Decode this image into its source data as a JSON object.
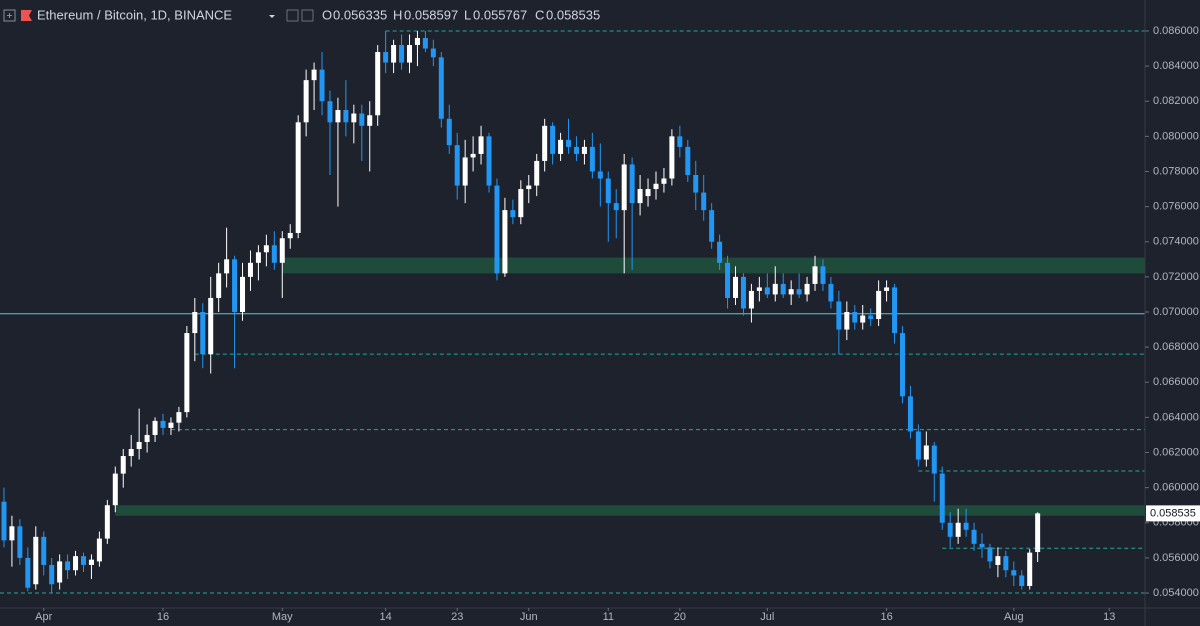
{
  "chart_data": {
    "type": "candlestick",
    "title": "Ethereum / Bitcoin, 1D, BINANCE",
    "ohlc_labels": [
      "O",
      "H",
      "L",
      "C"
    ],
    "up_color": "#ffffff",
    "down_color": "#2196f3",
    "open": [
      0.0592,
      0.057,
      0.0578,
      0.056,
      0.0545,
      0.0572,
      0.0556,
      0.0546,
      0.0558,
      0.0553,
      0.0561,
      0.0556,
      0.0558,
      0.0571,
      0.059,
      0.0608,
      0.0618,
      0.0622,
      0.0626,
      0.063,
      0.0638,
      0.0634,
      0.0637,
      0.0643,
      0.0688,
      0.07,
      0.0676,
      0.0708,
      0.0722,
      0.073,
      0.07,
      0.072,
      0.0728,
      0.0734,
      0.0738,
      0.0728,
      0.0742,
      0.0745,
      0.0808,
      0.0832,
      0.0838,
      0.082,
      0.0808,
      0.0815,
      0.0808,
      0.0813,
      0.0806,
      0.0812,
      0.0848,
      0.0842,
      0.0852,
      0.0842,
      0.0852,
      0.0856,
      0.085,
      0.0845,
      0.081,
      0.0795,
      0.0772,
      0.0788,
      0.079,
      0.08,
      0.0772,
      0.0722,
      0.0758,
      0.0754,
      0.077,
      0.0772,
      0.0786,
      0.0806,
      0.079,
      0.0798,
      0.0794,
      0.079,
      0.0794,
      0.078,
      0.0776,
      0.0762,
      0.0758,
      0.0784,
      0.0762,
      0.0766,
      0.077,
      0.0773,
      0.0776,
      0.08,
      0.0794,
      0.0778,
      0.0768,
      0.0758,
      0.074,
      0.0728,
      0.0708,
      0.072,
      0.0702,
      0.0712,
      0.0714,
      0.071,
      0.0716,
      0.071,
      0.0713,
      0.071,
      0.0716,
      0.0726,
      0.0716,
      0.0706,
      0.069,
      0.07,
      0.0694,
      0.0698,
      0.0696,
      0.0712,
      0.0714,
      0.0688,
      0.0652,
      0.0632,
      0.0616,
      0.0624,
      0.0608,
      0.058,
      0.0572,
      0.058,
      0.0576,
      0.0568,
      0.0566,
      0.0556,
      0.0561,
      0.0553,
      0.055,
      0.0544,
      0.056335
    ],
    "high": [
      0.06,
      0.0584,
      0.0582,
      0.0566,
      0.0578,
      0.0575,
      0.056,
      0.0562,
      0.0562,
      0.0564,
      0.0563,
      0.0562,
      0.0575,
      0.0593,
      0.0612,
      0.0622,
      0.063,
      0.0645,
      0.0636,
      0.064,
      0.0642,
      0.064,
      0.0646,
      0.0692,
      0.0708,
      0.0705,
      0.072,
      0.0728,
      0.0748,
      0.0732,
      0.0728,
      0.0735,
      0.0738,
      0.0744,
      0.0746,
      0.0746,
      0.075,
      0.0812,
      0.0838,
      0.0842,
      0.0848,
      0.0826,
      0.0822,
      0.0832,
      0.0818,
      0.0818,
      0.082,
      0.0852,
      0.086,
      0.0855,
      0.0858,
      0.0858,
      0.086,
      0.086,
      0.0855,
      0.0848,
      0.0818,
      0.0802,
      0.0798,
      0.08,
      0.0806,
      0.0802,
      0.0776,
      0.0765,
      0.0764,
      0.0775,
      0.0778,
      0.079,
      0.081,
      0.0808,
      0.0802,
      0.081,
      0.08,
      0.0798,
      0.0802,
      0.0796,
      0.078,
      0.077,
      0.079,
      0.0788,
      0.0778,
      0.0776,
      0.078,
      0.0782,
      0.0804,
      0.0806,
      0.0798,
      0.0786,
      0.0778,
      0.0762,
      0.0744,
      0.0732,
      0.0726,
      0.0722,
      0.0716,
      0.072,
      0.0722,
      0.0726,
      0.0722,
      0.0718,
      0.0722,
      0.072,
      0.0732,
      0.073,
      0.072,
      0.0712,
      0.0706,
      0.0704,
      0.0704,
      0.0702,
      0.0718,
      0.0718,
      0.0716,
      0.0692,
      0.0658,
      0.0636,
      0.0632,
      0.0626,
      0.0612,
      0.0586,
      0.0588,
      0.0588,
      0.058,
      0.0574,
      0.0568,
      0.0566,
      0.0564,
      0.0558,
      0.0553,
      0.0565,
      0.058597
    ],
    "low": [
      0.0566,
      0.0555,
      0.0556,
      0.0541,
      0.0542,
      0.055,
      0.054,
      0.0542,
      0.0548,
      0.055,
      0.0552,
      0.0548,
      0.0555,
      0.0568,
      0.0586,
      0.06,
      0.0612,
      0.0616,
      0.062,
      0.0626,
      0.063,
      0.063,
      0.0632,
      0.064,
      0.0672,
      0.0668,
      0.0665,
      0.07,
      0.0714,
      0.0668,
      0.0695,
      0.0712,
      0.0718,
      0.0726,
      0.0724,
      0.0708,
      0.0736,
      0.0742,
      0.08,
      0.0815,
      0.0812,
      0.0778,
      0.076,
      0.08,
      0.0796,
      0.0786,
      0.078,
      0.0806,
      0.0836,
      0.0836,
      0.0838,
      0.0836,
      0.084,
      0.0848,
      0.084,
      0.0805,
      0.079,
      0.0764,
      0.0762,
      0.078,
      0.0784,
      0.0768,
      0.0718,
      0.072,
      0.075,
      0.075,
      0.0762,
      0.0766,
      0.078,
      0.0784,
      0.0786,
      0.079,
      0.0786,
      0.0784,
      0.0776,
      0.076,
      0.074,
      0.0742,
      0.0722,
      0.0724,
      0.0755,
      0.076,
      0.0764,
      0.0768,
      0.0772,
      0.0788,
      0.0774,
      0.0758,
      0.0752,
      0.0736,
      0.0724,
      0.0702,
      0.0704,
      0.0698,
      0.0694,
      0.0706,
      0.0708,
      0.0706,
      0.0708,
      0.0704,
      0.0708,
      0.0706,
      0.0712,
      0.0712,
      0.0702,
      0.0676,
      0.0684,
      0.069,
      0.069,
      0.0692,
      0.0692,
      0.0706,
      0.0682,
      0.0648,
      0.0628,
      0.0612,
      0.0612,
      0.0592,
      0.0576,
      0.0566,
      0.0568,
      0.0572,
      0.0564,
      0.056,
      0.0554,
      0.0549,
      0.0549,
      0.0544,
      0.0542,
      0.0542,
      0.055767
    ],
    "close": [
      0.057,
      0.0578,
      0.056,
      0.0543,
      0.0572,
      0.0556,
      0.0545,
      0.0558,
      0.0553,
      0.0561,
      0.0556,
      0.0559,
      0.0571,
      0.059,
      0.0608,
      0.0618,
      0.0622,
      0.0626,
      0.063,
      0.0638,
      0.0634,
      0.0637,
      0.0643,
      0.0688,
      0.07,
      0.0676,
      0.0708,
      0.0722,
      0.073,
      0.07,
      0.072,
      0.0728,
      0.0734,
      0.0738,
      0.0728,
      0.0742,
      0.0745,
      0.0808,
      0.0832,
      0.0838,
      0.082,
      0.0808,
      0.0815,
      0.0808,
      0.0813,
      0.0806,
      0.0812,
      0.0848,
      0.0842,
      0.0852,
      0.0842,
      0.0852,
      0.0856,
      0.085,
      0.0845,
      0.081,
      0.0795,
      0.0772,
      0.0788,
      0.079,
      0.08,
      0.0772,
      0.0722,
      0.0758,
      0.0754,
      0.077,
      0.0772,
      0.0786,
      0.0806,
      0.079,
      0.0798,
      0.0794,
      0.079,
      0.0794,
      0.078,
      0.0776,
      0.0762,
      0.0758,
      0.0784,
      0.0762,
      0.077,
      0.077,
      0.0773,
      0.0776,
      0.08,
      0.0794,
      0.0778,
      0.0768,
      0.0758,
      0.074,
      0.0728,
      0.0708,
      0.072,
      0.0702,
      0.0712,
      0.0714,
      0.071,
      0.0716,
      0.071,
      0.0713,
      0.071,
      0.0716,
      0.0726,
      0.0716,
      0.0706,
      0.069,
      0.07,
      0.0694,
      0.0698,
      0.0696,
      0.0712,
      0.0714,
      0.0688,
      0.0652,
      0.0632,
      0.0616,
      0.0624,
      0.0608,
      0.058,
      0.0572,
      0.058,
      0.0576,
      0.0568,
      0.0566,
      0.0558,
      0.0561,
      0.0553,
      0.055,
      0.0544,
      0.0563,
      0.058535
    ],
    "xlim": [
      -0.5,
      143.5
    ],
    "xticks": [
      {
        "value": 5,
        "label": "Apr"
      },
      {
        "value": 20,
        "label": "16"
      },
      {
        "value": 35,
        "label": "May"
      },
      {
        "value": 48,
        "label": "14"
      },
      {
        "value": 57,
        "label": "23"
      },
      {
        "value": 66,
        "label": "Jun"
      },
      {
        "value": 76,
        "label": "11"
      },
      {
        "value": 85,
        "label": "20"
      },
      {
        "value": 96,
        "label": "Jul"
      },
      {
        "value": 111,
        "label": "16"
      },
      {
        "value": 127,
        "label": "Aug"
      },
      {
        "value": 139,
        "label": "13"
      }
    ],
    "ylim": [
      0.053,
      0.087
    ],
    "yticks": [
      {
        "value": 0.054,
        "label": "0.054000"
      },
      {
        "value": 0.056,
        "label": "0.056000"
      },
      {
        "value": 0.058,
        "label": "0.058000"
      },
      {
        "value": 0.06,
        "label": "0.060000"
      },
      {
        "value": 0.062,
        "label": "0.062000"
      },
      {
        "value": 0.064,
        "label": "0.064000"
      },
      {
        "value": 0.066,
        "label": "0.066000"
      },
      {
        "value": 0.068,
        "label": "0.068000"
      },
      {
        "value": 0.07,
        "label": "0.070000"
      },
      {
        "value": 0.072,
        "label": "0.072000"
      },
      {
        "value": 0.074,
        "label": "0.074000"
      },
      {
        "value": 0.076,
        "label": "0.076000"
      },
      {
        "value": 0.078,
        "label": "0.078000"
      },
      {
        "value": 0.08,
        "label": "0.080000"
      },
      {
        "value": 0.082,
        "label": "0.082000"
      },
      {
        "value": 0.084,
        "label": "0.084000"
      },
      {
        "value": 0.086,
        "label": "0.086000"
      }
    ],
    "dashed_levels": [
      {
        "value": 0.086,
        "start": 48
      },
      {
        "value": 0.0676,
        "start": 24
      },
      {
        "value": 0.0633,
        "start": 21
      },
      {
        "value": 0.06095,
        "start": 115
      },
      {
        "value": 0.05655,
        "start": 118
      },
      {
        "value": 0.054
      }
    ],
    "solid_levels": [
      {
        "value": 0.0699
      }
    ],
    "zones": [
      {
        "from": 0.0722,
        "to": 0.0731,
        "start": 35
      },
      {
        "from": 0.0584,
        "to": 0.059,
        "start": 14
      }
    ],
    "level_color": "#26a69a",
    "solid_color": "#4dd0e1",
    "zone_color": "#1f4b3a"
  }
}
